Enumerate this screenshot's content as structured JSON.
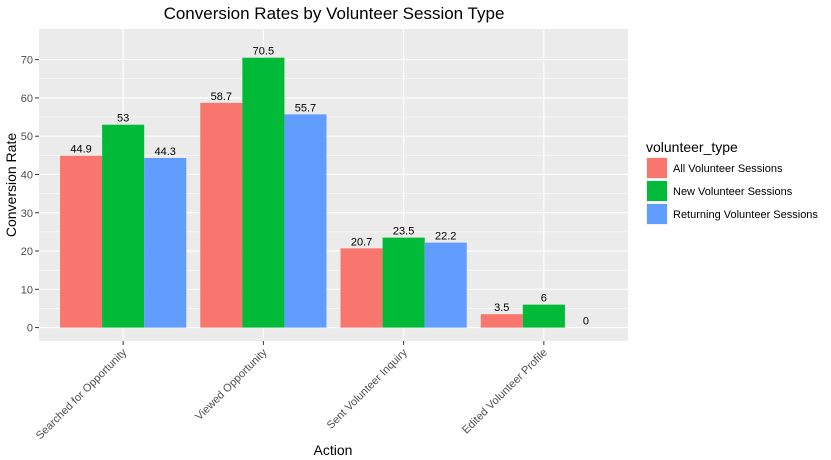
{
  "chart_data": {
    "type": "bar",
    "title": "Conversion Rates by Volunteer Session Type",
    "xlabel": "Action",
    "ylabel": "Conversion Rate",
    "ylim": [
      -3.5,
      78
    ],
    "yticks": [
      0,
      10,
      20,
      30,
      40,
      50,
      60,
      70
    ],
    "grid": true,
    "legend_position": "right",
    "legend_title": "volunteer_type",
    "categories": [
      "Searched for Opportunity",
      "Viewed Opportunity",
      "Sent Volunteer Inquiry",
      "Edited Volunteer Profile"
    ],
    "series": [
      {
        "name": "All Volunteer Sessions",
        "color": "#F8766D",
        "values": [
          44.9,
          58.7,
          20.7,
          3.5
        ],
        "labels": [
          "44.9",
          "58.7",
          "20.7",
          "3.5"
        ]
      },
      {
        "name": "New Volunteer Sessions",
        "color": "#00BA38",
        "values": [
          53,
          70.5,
          23.5,
          6
        ],
        "labels": [
          "53",
          "70.5",
          "23.5",
          "6"
        ]
      },
      {
        "name": "Returning Volunteer Sessions",
        "color": "#619CFF",
        "values": [
          44.3,
          55.7,
          22.2,
          0
        ],
        "labels": [
          "44.3",
          "55.7",
          "22.2",
          "0"
        ]
      }
    ]
  }
}
